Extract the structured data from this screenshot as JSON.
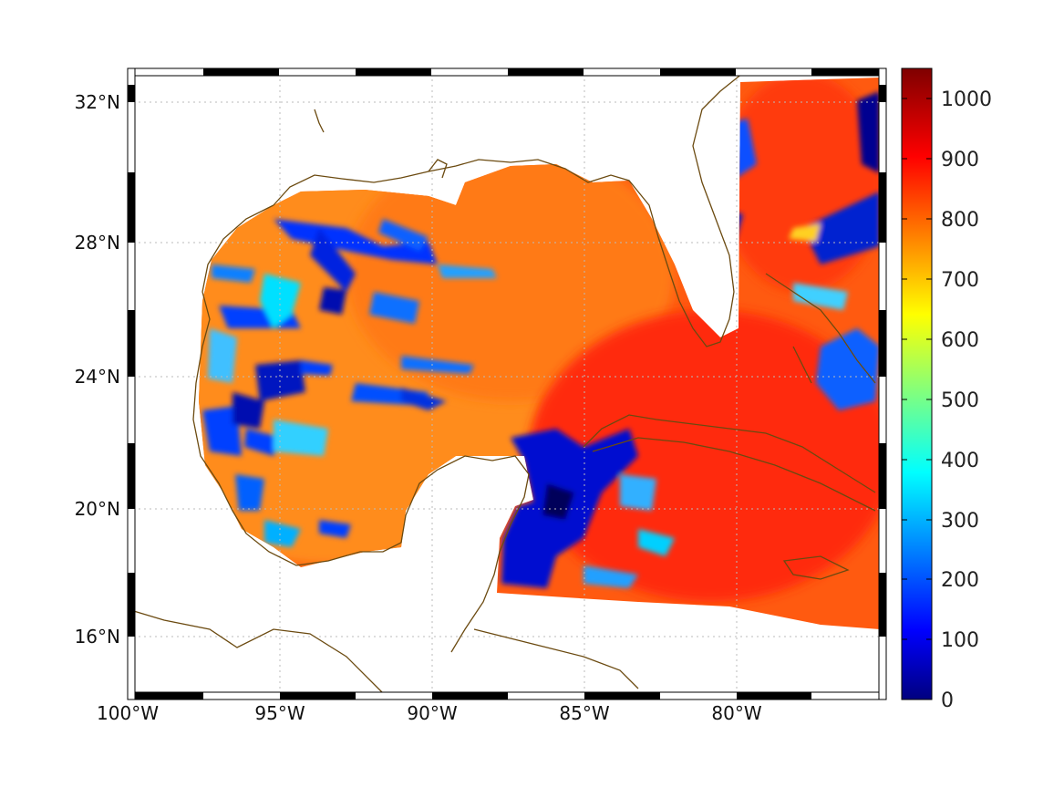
{
  "map": {
    "lon_range": [
      -100,
      -75
    ],
    "lat_range": [
      14,
      33
    ],
    "x_tick_labels": [
      "100°W",
      "95°W",
      "90°W",
      "85°W",
      "80°W"
    ],
    "x_tick_values": [
      -100,
      -95,
      -90,
      -85,
      -80
    ],
    "y_tick_labels": [
      "16°N",
      "20°N",
      "24°N",
      "28°N",
      "32°N"
    ],
    "y_tick_values": [
      16,
      20,
      24,
      28,
      32
    ],
    "grid": "dotted",
    "coastline_color": "#6b4a10"
  },
  "colorbar": {
    "colormap": "jet",
    "range": [
      0,
      1050
    ],
    "tick_labels": [
      "0",
      "100",
      "200",
      "300",
      "400",
      "500",
      "600",
      "700",
      "800",
      "900",
      "1000"
    ],
    "tick_values": [
      0,
      100,
      200,
      300,
      400,
      500,
      600,
      700,
      800,
      900,
      1000
    ],
    "placement": "right"
  }
}
